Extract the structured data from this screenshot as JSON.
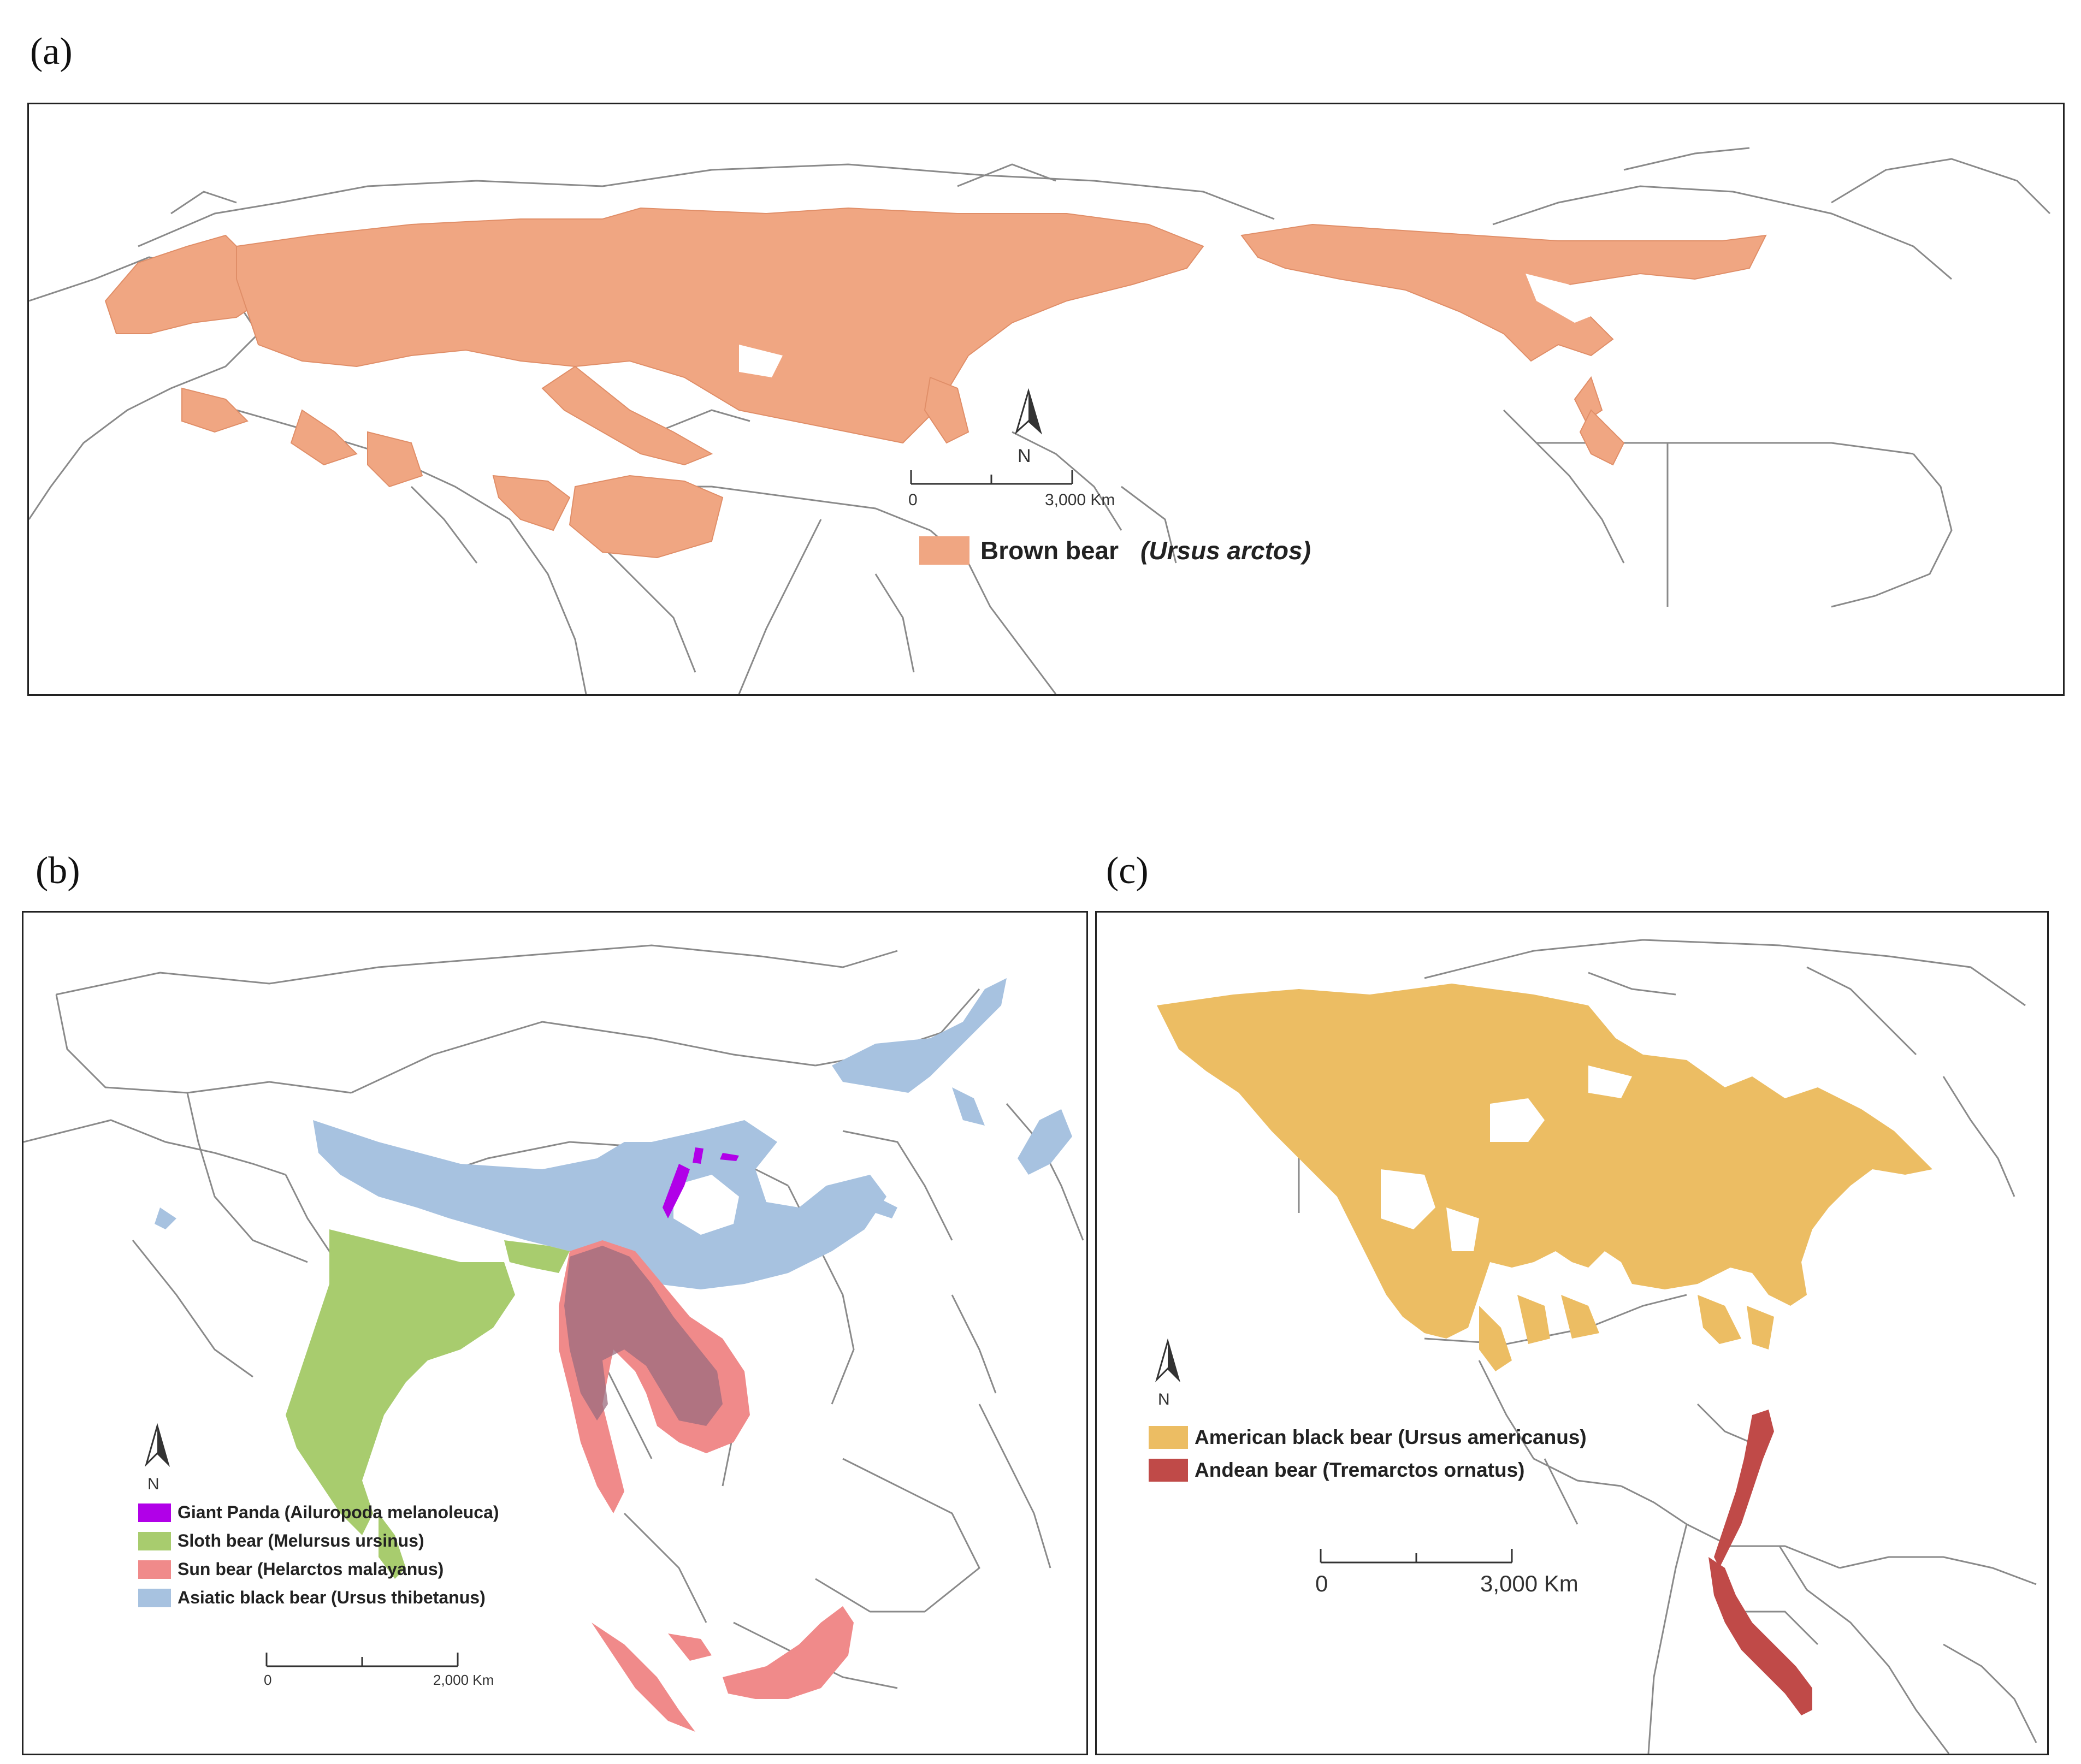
{
  "panels": {
    "a": {
      "letter": "(a)",
      "legend": [
        {
          "label": "Brown bear",
          "scientific": "(Ursus arctos)",
          "color": "#f0a682"
        }
      ],
      "scale": {
        "start": "0",
        "end": "3,000 Km"
      },
      "north": "N"
    },
    "b": {
      "letter": "(b)",
      "legend": [
        {
          "label": "Giant Panda (Ailuropoda melanoleuca)",
          "color": "#b100e8"
        },
        {
          "label": "Sloth bear (Melursus ursinus)",
          "color": "#a8cc6e"
        },
        {
          "label": "Sun bear (Helarctos malayanus)",
          "color": "#f08a8a"
        },
        {
          "label": "Asiatic black bear (Ursus thibetanus)",
          "color": "#a7c2e0"
        }
      ],
      "scale": {
        "start": "0",
        "end": "2,000 Km"
      },
      "north": "N"
    },
    "c": {
      "letter": "(c)",
      "legend": [
        {
          "label": "American black bear (Ursus americanus)",
          "color": "#ecbd63"
        },
        {
          "label": "Andean bear (Tremarctos ornatus)",
          "color": "#c04a48"
        }
      ],
      "scale": {
        "start": "0",
        "end": "3,000 Km"
      },
      "north": "N"
    }
  },
  "colors": {
    "border_lines": "#8a8a8a",
    "frame": "#222222",
    "background": "#ffffff",
    "andean_overlay": "#9b6b7e"
  }
}
